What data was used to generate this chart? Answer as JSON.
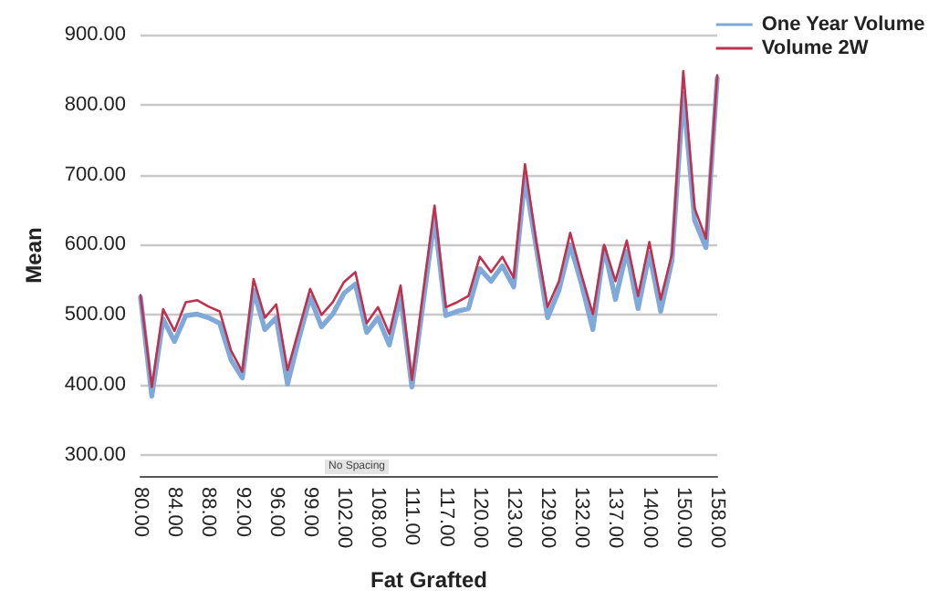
{
  "chart_data": {
    "type": "line",
    "xlabel": "Fat Grafted",
    "ylabel": "Mean",
    "categories": [
      "80.00",
      null,
      null,
      "84.00",
      null,
      null,
      "88.00",
      null,
      null,
      "92.00",
      null,
      null,
      "96.00",
      null,
      null,
      "99.00",
      null,
      null,
      "102.00",
      null,
      null,
      "108.00",
      null,
      null,
      "111.00",
      null,
      null,
      "117.00",
      null,
      null,
      "120.00",
      null,
      null,
      "123.00",
      null,
      null,
      "129.00",
      null,
      null,
      "132.00",
      null,
      null,
      "137.00",
      null,
      null,
      "140.00",
      null,
      null,
      "150.00",
      null,
      null,
      "158.00"
    ],
    "series": [
      {
        "name": "One Year Volume",
        "color": "#7fa9d8",
        "values": [
          525,
          384,
          494,
          462,
          499,
          501,
          496,
          488,
          436,
          410,
          535,
          479,
          496,
          401,
          466,
          525,
          483,
          501,
          531,
          544,
          475,
          496,
          457,
          527,
          397,
          518,
          639,
          499,
          505,
          509,
          566,
          548,
          570,
          540,
          695,
          596,
          496,
          535,
          600,
          544,
          479,
          596,
          522,
          591,
          509,
          588,
          505,
          578,
          816,
          635,
          596,
          838
        ]
      },
      {
        "name": "Volume 2W",
        "color": "#c0304f",
        "values": [
          528,
          397,
          508,
          477,
          518,
          521,
          512,
          505,
          449,
          419,
          551,
          496,
          515,
          421,
          479,
          537,
          500,
          518,
          547,
          561,
          488,
          511,
          473,
          542,
          407,
          533,
          656,
          511,
          518,
          527,
          583,
          561,
          583,
          553,
          715,
          604,
          511,
          548,
          617,
          557,
          501,
          600,
          548,
          606,
          527,
          604,
          522,
          587,
          848,
          652,
          609,
          842
        ]
      }
    ],
    "ylim": [
      270,
      900
    ],
    "yticks": [
      {
        "value": 300,
        "label": "300.00"
      },
      {
        "value": 400,
        "label": "400.00"
      },
      {
        "value": 500,
        "label": "500.00"
      },
      {
        "value": 600,
        "label": "600.00"
      },
      {
        "value": 700,
        "label": "700.00"
      },
      {
        "value": 800,
        "label": "800.00"
      },
      {
        "value": 900,
        "label": "900.00"
      }
    ],
    "grid": "y",
    "legend": "top right",
    "marker": "none",
    "line_style": "solid",
    "annotations": [
      "No Spacing"
    ]
  }
}
